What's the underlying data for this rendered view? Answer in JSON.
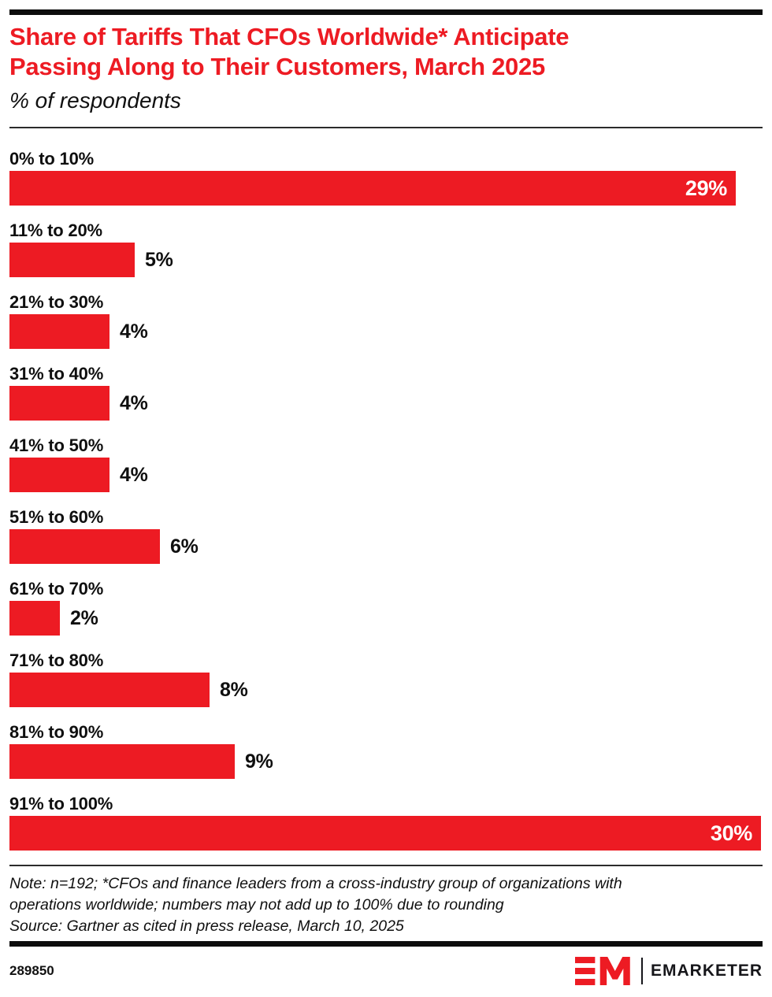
{
  "header": {
    "title_lines": [
      "Share of Tariffs That CFOs Worldwide* Anticipate",
      "Passing Along to Their Customers, March 2025"
    ],
    "subtitle": "% of respondents"
  },
  "chart_data": {
    "type": "bar",
    "orientation": "horizontal",
    "title": "Share of Tariffs That CFOs Worldwide* Anticipate Passing Along to Their Customers, March 2025",
    "subtitle": "% of respondents",
    "categories": [
      "0% to 10%",
      "11% to 20%",
      "21% to 30%",
      "31% to 40%",
      "41% to 50%",
      "51% to 60%",
      "61% to 70%",
      "71% to 80%",
      "81% to 90%",
      "91% to 100%"
    ],
    "values": [
      29,
      5,
      4,
      4,
      4,
      6,
      2,
      8,
      9,
      30
    ],
    "value_labels": [
      "29%",
      "5%",
      "4%",
      "4%",
      "4%",
      "6%",
      "2%",
      "8%",
      "9%",
      "30%"
    ],
    "label_inside_threshold": 29,
    "xlim": [
      0,
      30
    ],
    "grid": false,
    "legend": "none",
    "bar_color": "#ED1B23",
    "value_label_color_inside": "#ffffff",
    "value_label_color_outside": "#0f0f0f"
  },
  "footer": {
    "note_lines": [
      "Note: n=192; *CFOs and finance leaders from a cross-industry group of organizations with",
      "operations worldwide; numbers may not add up to 100% due to rounding"
    ],
    "source": "Source: Gartner as cited in press release, March 10, 2025",
    "chart_id": "289850",
    "brand": "EMARKETER",
    "brand_red": "#ED1B23"
  }
}
